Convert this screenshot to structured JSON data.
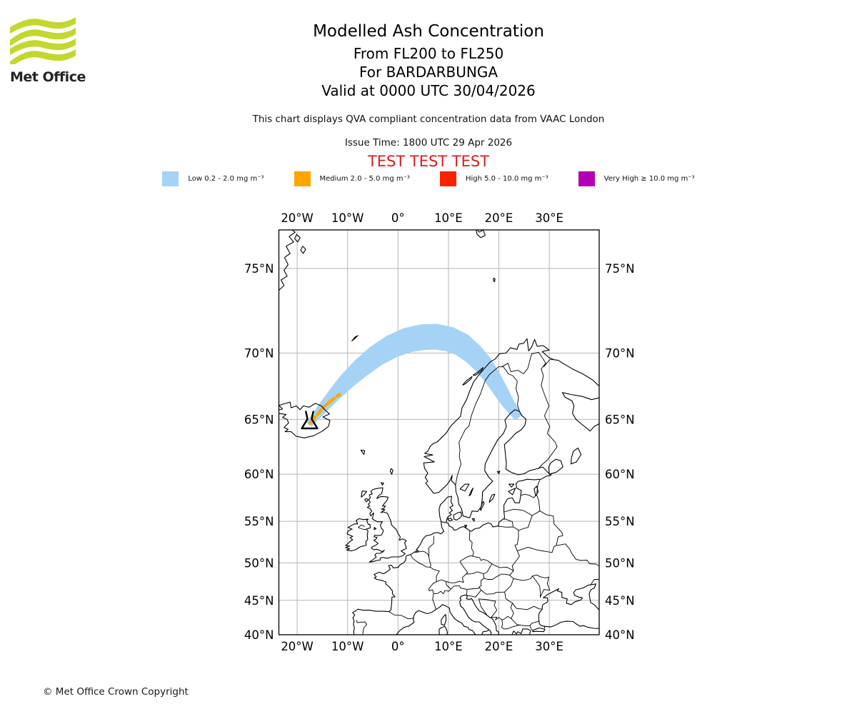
{
  "header": {
    "logo_text": "Met Office",
    "title": "Modelled Ash Concentration",
    "subtitle_fl": "From FL200 to FL250",
    "subtitle_volcano": "For BARDARBUNGA",
    "subtitle_valid": "Valid at 0000 UTC 30/04/2026",
    "compliance_note": "This chart displays QVA compliant concentration data from VAAC London",
    "issue_time": "Issue Time: 1800 UTC 29 Apr 2026",
    "test_banner": "TEST TEST TEST"
  },
  "colors": {
    "test_banner_red": "#d02020",
    "gridline_gray": "#b5b5b5",
    "coastline_black": "#000000",
    "logo_lime": "#c3d72f"
  },
  "legend": {
    "items": [
      {
        "id": "low",
        "label": "Low 0.2 - 2.0 mg m⁻³",
        "color": "#a6d2f5"
      },
      {
        "id": "medium",
        "label": "Medium 2.0 - 5.0 mg m⁻³",
        "color": "#ffa500"
      },
      {
        "id": "high",
        "label": "High 5.0 - 10.0 mg m⁻³",
        "color": "#ff2200"
      },
      {
        "id": "very-high",
        "label": "Very High ≥ 10.0 mg m⁻³",
        "color": "#b300b3"
      }
    ]
  },
  "map": {
    "longitude_ticks": [
      {
        "label": "20°W",
        "value": -20
      },
      {
        "label": "10°W",
        "value": -10
      },
      {
        "label": "0°",
        "value": 0
      },
      {
        "label": "10°E",
        "value": 10
      },
      {
        "label": "20°E",
        "value": 20
      },
      {
        "label": "30°E",
        "value": 30
      }
    ],
    "latitude_ticks": [
      {
        "label": "75°N",
        "value": 75
      },
      {
        "label": "70°N",
        "value": 70
      },
      {
        "label": "65°N",
        "value": 65
      },
      {
        "label": "60°N",
        "value": 60
      },
      {
        "label": "55°N",
        "value": 55
      },
      {
        "label": "50°N",
        "value": 50
      },
      {
        "label": "45°N",
        "value": 45
      },
      {
        "label": "40°N",
        "value": 40
      }
    ]
  },
  "chart_data": {
    "type": "map",
    "projection": "mercator",
    "extent": {
      "lon_min": -23.6,
      "lon_max": 39.9,
      "lat_min": 40.0,
      "lat_max": 76.9
    },
    "volcano_marker": {
      "name": "BARDARBUNGA",
      "lat": 64.63,
      "lon": -17.53
    },
    "ash_plume": {
      "low": {
        "level": "Low 0.2 - 2.0 mg m⁻³",
        "color": "#a6d2f5",
        "centerline_lon_lat_width": [
          [
            -17.55,
            64.63,
            7
          ],
          [
            -16.3,
            65.25,
            9
          ],
          [
            -14.7,
            66.05,
            12
          ],
          [
            -12.6,
            67.0,
            16
          ],
          [
            -10.2,
            68.0,
            20
          ],
          [
            -7.4,
            68.95,
            24
          ],
          [
            -4.4,
            69.8,
            27
          ],
          [
            -1.2,
            70.45,
            30
          ],
          [
            1.8,
            70.85,
            32
          ],
          [
            4.8,
            71.05,
            33
          ],
          [
            7.6,
            71.08,
            33
          ],
          [
            10.2,
            70.92,
            32
          ],
          [
            12.7,
            70.55,
            30
          ],
          [
            14.9,
            69.95,
            27
          ],
          [
            16.9,
            69.2,
            24
          ],
          [
            18.7,
            68.3,
            21
          ],
          [
            20.3,
            67.3,
            18
          ],
          [
            21.7,
            66.4,
            15
          ],
          [
            22.9,
            65.7,
            12
          ],
          [
            23.8,
            65.2,
            9
          ]
        ]
      },
      "medium": {
        "level": "Medium 2.0 - 5.0 mg m⁻³",
        "color": "#ffa500",
        "dashed": true,
        "centerline_lon_lat": [
          [
            -17.5,
            64.66
          ],
          [
            -16.6,
            65.1
          ],
          [
            -15.6,
            65.6
          ],
          [
            -14.5,
            66.1
          ],
          [
            -13.3,
            66.5
          ],
          [
            -12.2,
            66.85
          ],
          [
            -11.6,
            67.0
          ]
        ]
      }
    }
  },
  "footer": {
    "copyright": "© Met Office Crown Copyright"
  }
}
